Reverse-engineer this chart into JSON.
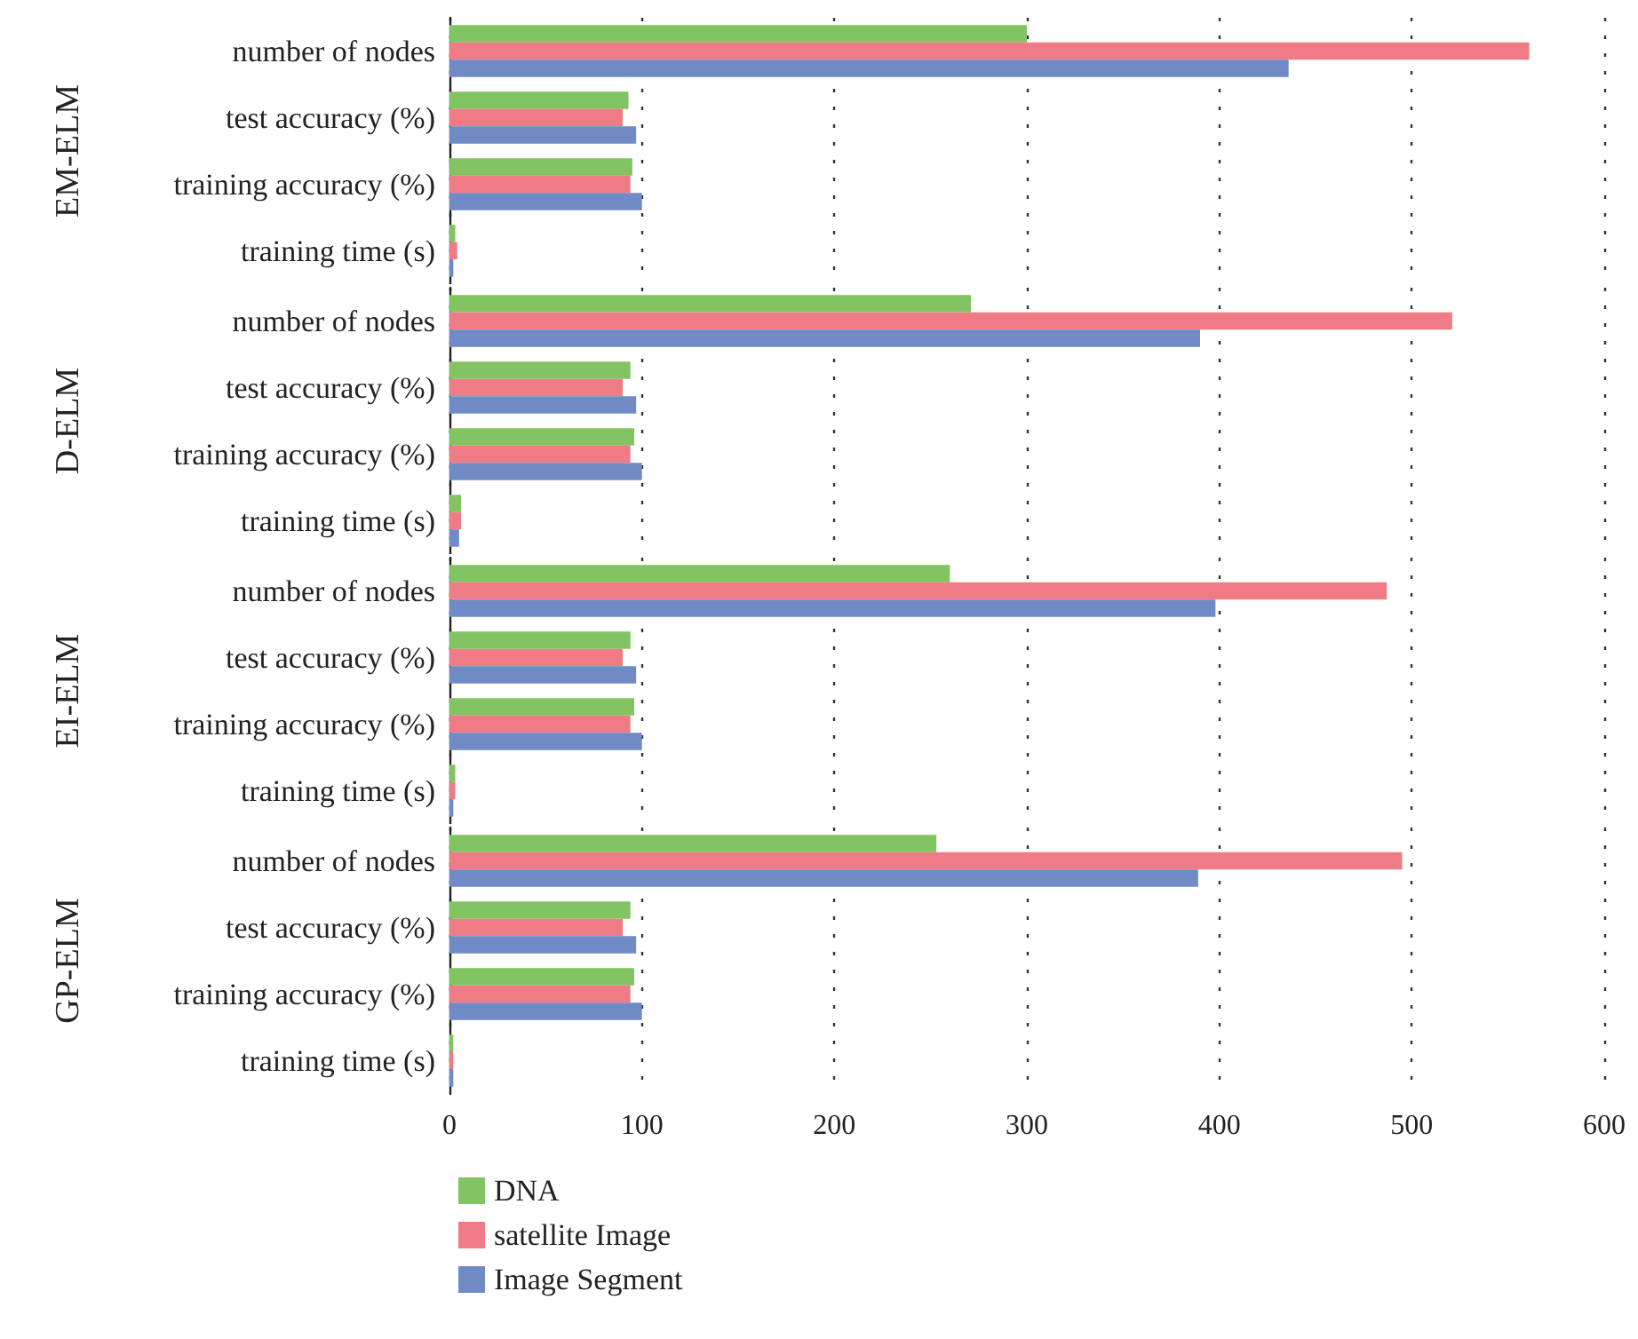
{
  "chart_data": [
    {
      "type": "bar",
      "orientation": "horizontal",
      "ylabel": "EM-ELM",
      "categories": [
        "number of nodes",
        "test accuracy (%)",
        "training accuracy (%)",
        "training time (s)"
      ],
      "series": [
        {
          "color": "#82c362",
          "values": [
            300,
            93,
            95,
            3
          ]
        },
        {
          "color": "#ef7b87",
          "values": [
            561,
            90,
            94,
            4
          ]
        },
        {
          "color": "#6f8ac5",
          "values": [
            436,
            97,
            100,
            2
          ]
        }
      ],
      "xlim": [
        0,
        600
      ],
      "xticks": [
        0,
        100,
        200,
        300,
        400,
        500,
        600
      ],
      "grid": "x",
      "tick_labels": "y"
    },
    {
      "type": "bar",
      "orientation": "horizontal",
      "ylabel": "D-ELM",
      "categories": [
        "number of nodes",
        "test accuracy (%)",
        "training accuracy (%)",
        "training time (s)"
      ],
      "series": [
        {
          "color": "#82c362",
          "values": [
            271,
            94,
            96,
            6
          ]
        },
        {
          "color": "#ef7b87",
          "values": [
            521,
            90,
            94,
            6
          ]
        },
        {
          "color": "#6f8ac5",
          "values": [
            390,
            97,
            100,
            5
          ]
        }
      ],
      "xlim": [
        0,
        600
      ],
      "xticks": [
        0,
        100,
        200,
        300,
        400,
        500,
        600
      ],
      "grid": "x",
      "tick_labels": "y"
    },
    {
      "type": "bar",
      "orientation": "horizontal",
      "ylabel": "EI-ELM",
      "categories": [
        "number of nodes",
        "test accuracy (%)",
        "training accuracy (%)",
        "training time (s)"
      ],
      "series": [
        {
          "color": "#82c362",
          "values": [
            260,
            94,
            96,
            3
          ]
        },
        {
          "color": "#ef7b87",
          "values": [
            487,
            90,
            94,
            3
          ]
        },
        {
          "color": "#6f8ac5",
          "values": [
            398,
            97,
            100,
            2
          ]
        }
      ],
      "xlim": [
        0,
        600
      ],
      "xticks": [
        0,
        100,
        200,
        300,
        400,
        500,
        600
      ],
      "grid": "x",
      "tick_labels": "y"
    },
    {
      "type": "bar",
      "orientation": "horizontal",
      "ylabel": "GP-ELM",
      "categories": [
        "number of nodes",
        "test accuracy (%)",
        "training accuracy (%)",
        "training time (s)"
      ],
      "series": [
        {
          "name": "DNA",
          "color": "#82c362",
          "values": [
            253,
            94,
            96,
            2
          ]
        },
        {
          "name": "satellite Image",
          "color": "#ef7b87",
          "values": [
            495,
            90,
            94,
            2
          ]
        },
        {
          "name": "Image Segment",
          "color": "#6f8ac5",
          "values": [
            389,
            97,
            100,
            2
          ]
        }
      ],
      "xlim": [
        0,
        600
      ],
      "xticks": [
        0,
        100,
        200,
        300,
        400,
        500,
        600
      ],
      "grid": "x",
      "legend": "bottom"
    }
  ]
}
